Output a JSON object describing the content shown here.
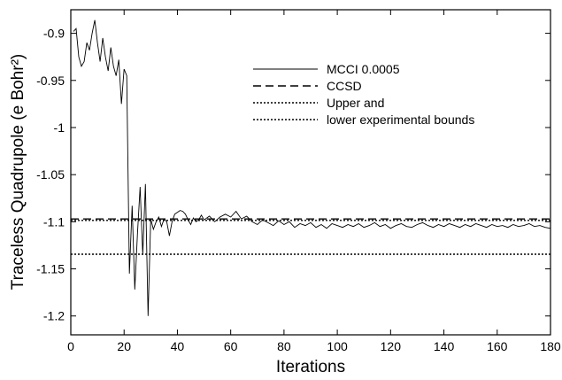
{
  "chart_data": {
    "type": "line",
    "xlabel": "Iterations",
    "ylabel": "Traceless Quadrupole (e Bohr²)",
    "xlim": [
      0,
      180
    ],
    "ylim": [
      -1.22,
      -0.875
    ],
    "xticks": [
      0,
      20,
      40,
      60,
      80,
      100,
      120,
      140,
      160,
      180
    ],
    "xtick_labels": [
      "0",
      "20",
      "40",
      "60",
      "80",
      "100",
      "120",
      "140",
      "160",
      "180"
    ],
    "yticks": [
      -0.9,
      -0.95,
      -1.0,
      -1.05,
      -1.1,
      -1.15,
      -1.2
    ],
    "ytick_labels": [
      "-0.9",
      "-0.95",
      "-1",
      "-1.05",
      "-1.1",
      "-1.15",
      "-1.2"
    ],
    "grid": false,
    "legend_placement": "top-right",
    "legend": [
      {
        "label": "MCCI 0.0005",
        "style": "solid"
      },
      {
        "label": "CCSD",
        "style": "dashed"
      },
      {
        "label": "Upper and",
        "style": "dotted"
      },
      {
        "label": "lower experimental bounds",
        "style": "dotted"
      }
    ],
    "series": [
      {
        "name": "MCCI 0.0005",
        "style": "solid",
        "x": [
          1,
          2,
          3,
          4,
          5,
          6,
          7,
          8,
          9,
          10,
          11,
          12,
          13,
          14,
          15,
          16,
          17,
          18,
          19,
          20,
          21,
          22,
          23,
          24,
          25,
          26,
          27,
          28,
          29,
          30,
          31,
          32,
          33,
          34,
          35,
          36,
          37,
          38,
          39,
          40,
          41,
          42,
          43,
          44,
          45,
          46,
          47,
          48,
          49,
          50,
          52,
          54,
          56,
          58,
          60,
          62,
          64,
          66,
          68,
          70,
          72,
          74,
          76,
          78,
          80,
          82,
          84,
          86,
          88,
          90,
          92,
          94,
          96,
          98,
          100,
          102,
          104,
          106,
          108,
          110,
          112,
          114,
          116,
          118,
          120,
          122,
          124,
          126,
          128,
          130,
          132,
          134,
          136,
          138,
          140,
          142,
          144,
          146,
          148,
          150,
          152,
          154,
          156,
          158,
          160,
          162,
          164,
          166,
          168,
          170,
          172,
          174,
          176,
          178,
          180
        ],
        "y": [
          -0.898,
          -0.895,
          -0.925,
          -0.935,
          -0.93,
          -0.91,
          -0.918,
          -0.9,
          -0.886,
          -0.91,
          -0.93,
          -0.905,
          -0.925,
          -0.94,
          -0.915,
          -0.935,
          -0.945,
          -0.928,
          -0.975,
          -0.938,
          -0.945,
          -1.155,
          -1.083,
          -1.172,
          -1.113,
          -1.063,
          -1.135,
          -1.06,
          -1.2,
          -1.097,
          -1.108,
          -1.1,
          -1.095,
          -1.105,
          -1.097,
          -1.1,
          -1.115,
          -1.1,
          -1.092,
          -1.09,
          -1.088,
          -1.089,
          -1.092,
          -1.098,
          -1.103,
          -1.096,
          -1.1,
          -1.098,
          -1.093,
          -1.098,
          -1.094,
          -1.1,
          -1.095,
          -1.092,
          -1.095,
          -1.089,
          -1.097,
          -1.094,
          -1.1,
          -1.103,
          -1.098,
          -1.101,
          -1.104,
          -1.099,
          -1.103,
          -1.1,
          -1.106,
          -1.102,
          -1.104,
          -1.101,
          -1.106,
          -1.103,
          -1.107,
          -1.102,
          -1.104,
          -1.106,
          -1.103,
          -1.105,
          -1.102,
          -1.106,
          -1.104,
          -1.101,
          -1.105,
          -1.103,
          -1.107,
          -1.104,
          -1.102,
          -1.105,
          -1.106,
          -1.103,
          -1.101,
          -1.104,
          -1.106,
          -1.103,
          -1.105,
          -1.102,
          -1.104,
          -1.106,
          -1.103,
          -1.105,
          -1.102,
          -1.104,
          -1.106,
          -1.103,
          -1.105,
          -1.104,
          -1.106,
          -1.103,
          -1.105,
          -1.104,
          -1.102,
          -1.105,
          -1.104,
          -1.106,
          -1.107
        ]
      },
      {
        "name": "CCSD",
        "style": "dashed",
        "x": [
          0,
          180
        ],
        "y": [
          -1.097,
          -1.097
        ]
      },
      {
        "name": "Upper and",
        "style": "dotted",
        "x": [
          0,
          180
        ],
        "y": [
          -1.0985,
          -1.0985
        ]
      },
      {
        "name": "lower experimental bounds",
        "style": "dotted",
        "x": [
          0,
          180
        ],
        "y": [
          -1.1345,
          -1.1345
        ]
      }
    ]
  }
}
